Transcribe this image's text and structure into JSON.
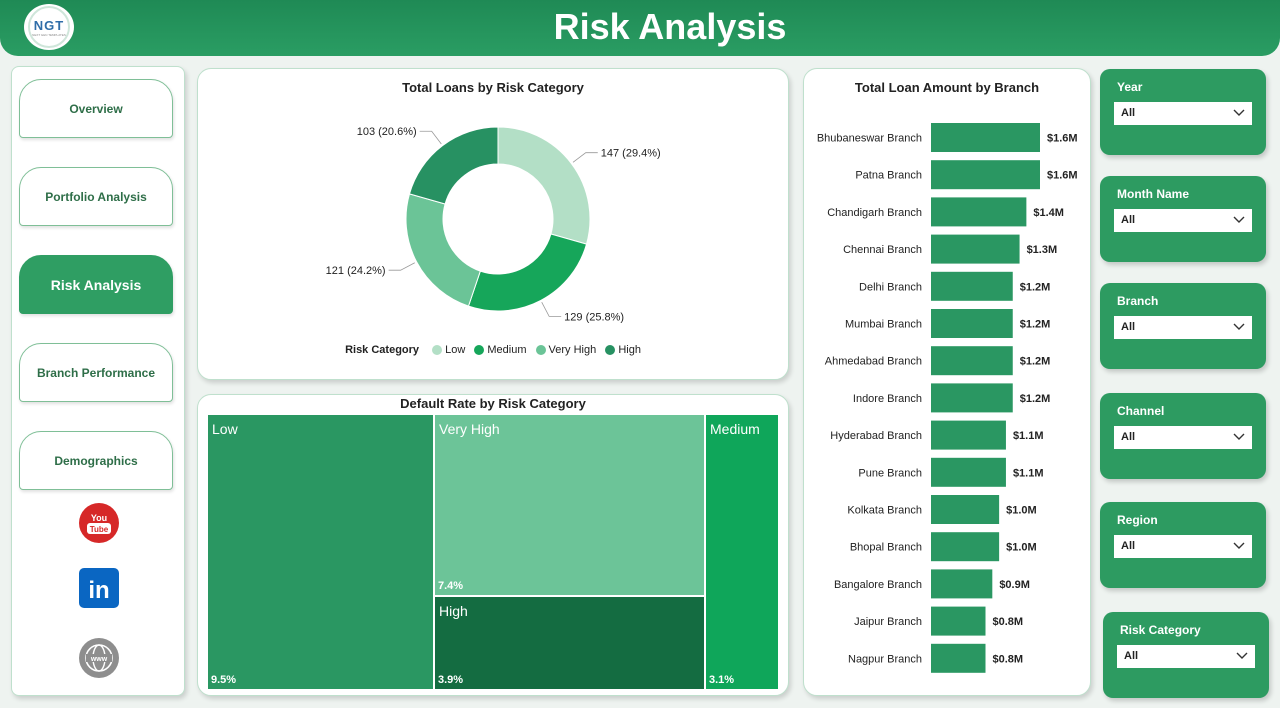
{
  "header": {
    "title": "Risk Analysis",
    "logo_text": "NGT",
    "logo_sub": "NEXT GEN TEMPLATES"
  },
  "nav": {
    "items": [
      {
        "label": "Overview",
        "active": false
      },
      {
        "label": "Portfolio Analysis",
        "active": false
      },
      {
        "label": "Risk Analysis",
        "active": true
      },
      {
        "label": "Branch Performance",
        "active": false
      },
      {
        "label": "Demographics",
        "active": false
      }
    ],
    "social": {
      "youtube_text_1": "You",
      "youtube_text_2": "Tube",
      "linkedin_text": "in",
      "web_text": "www"
    }
  },
  "donut": {
    "title": "Total Loans by Risk Category",
    "legend_title": "Risk Category",
    "chart_data": {
      "type": "pie",
      "title": "Total Loans by Risk Category",
      "categories": [
        "Low",
        "Medium",
        "Very High",
        "High"
      ],
      "values": [
        147,
        129,
        121,
        103
      ],
      "labels": [
        "147 (29.4%)",
        "129 (25.8%)",
        "121 (24.2%)",
        "103 (20.6%)"
      ],
      "colors": [
        "#b3dfc6",
        "#16a65a",
        "#6bc497",
        "#279162"
      ]
    }
  },
  "treemap": {
    "title": "Default Rate by Risk Category",
    "chart_data": {
      "type": "heatmap",
      "title": "Default Rate by Risk Category",
      "categories": [
        "Low",
        "Very High",
        "Medium",
        "High"
      ],
      "values": [
        9.5,
        7.4,
        3.1,
        3.9
      ],
      "labels": [
        "9.5%",
        "7.4%",
        "3.1%",
        "3.9%"
      ],
      "colors": [
        "#2a9762",
        "#6cc498",
        "#0fa65a",
        "#146c41"
      ]
    }
  },
  "bars": {
    "title": "Total Loan Amount by Branch",
    "chart_data": {
      "type": "bar",
      "title": "Total Loan Amount by Branch",
      "categories": [
        "Bhubaneswar Branch",
        "Patna Branch",
        "Chandigarh Branch",
        "Chennai Branch",
        "Delhi Branch",
        "Mumbai Branch",
        "Ahmedabad Branch",
        "Indore Branch",
        "Hyderabad Branch",
        "Pune Branch",
        "Kolkata Branch",
        "Bhopal Branch",
        "Bangalore Branch",
        "Jaipur Branch",
        "Nagpur Branch"
      ],
      "values": [
        1.6,
        1.6,
        1.4,
        1.3,
        1.2,
        1.2,
        1.2,
        1.2,
        1.1,
        1.1,
        1.0,
        1.0,
        0.9,
        0.8,
        0.8
      ],
      "labels": [
        "$1.6M",
        "$1.6M",
        "$1.4M",
        "$1.3M",
        "$1.2M",
        "$1.2M",
        "$1.2M",
        "$1.2M",
        "$1.1M",
        "$1.1M",
        "$1.0M",
        "$1.0M",
        "$0.9M",
        "$0.8M",
        "$0.8M"
      ],
      "color": "#2a9762"
    }
  },
  "slicers": [
    {
      "label": "Year",
      "value": "All"
    },
    {
      "label": "Month Name",
      "value": "All"
    },
    {
      "label": "Branch",
      "value": "All"
    },
    {
      "label": "Channel",
      "value": "All"
    },
    {
      "label": "Region",
      "value": "All"
    },
    {
      "label": "Risk Category",
      "value": "All"
    }
  ]
}
